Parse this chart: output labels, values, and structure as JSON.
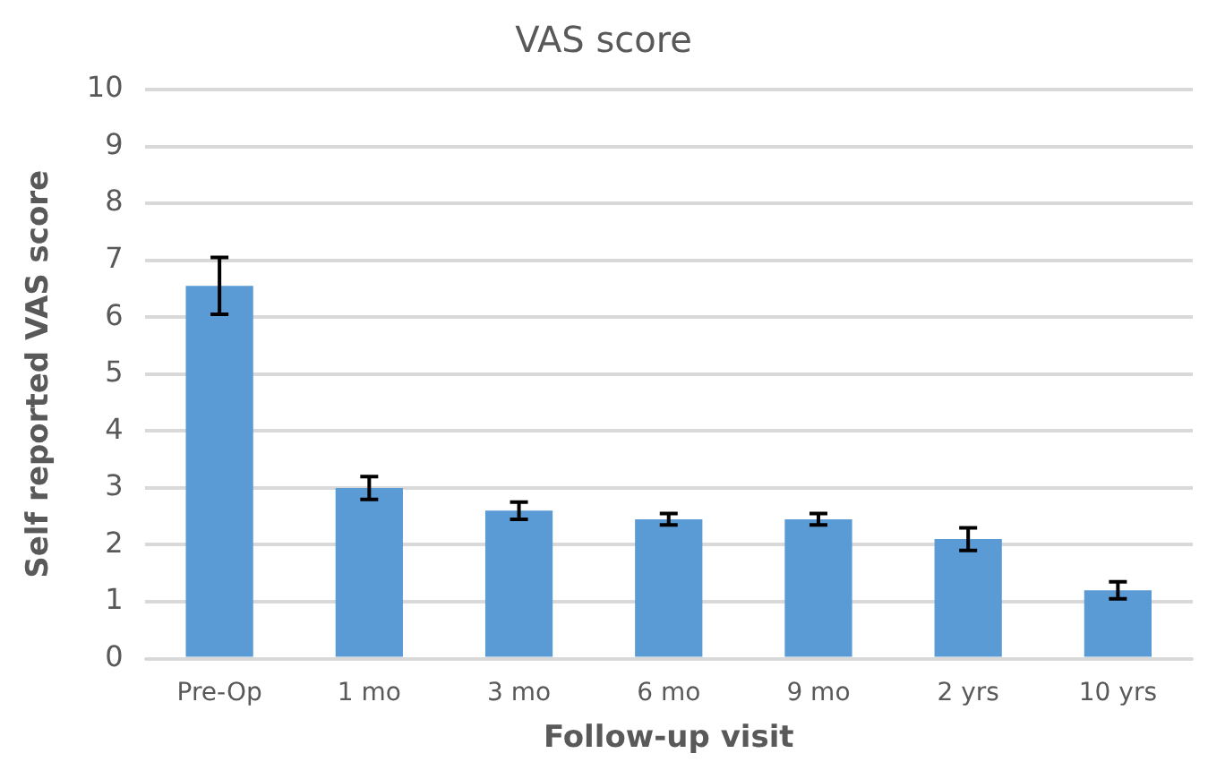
{
  "chart_data": {
    "type": "bar",
    "title": "VAS score",
    "xlabel": "Follow-up visit",
    "ylabel": "Self reported VAS score",
    "categories": [
      "Pre-Op",
      "1 mo",
      "3 mo",
      "6 mo",
      "9 mo",
      "2 yrs",
      "10 yrs"
    ],
    "values": [
      6.55,
      3.0,
      2.6,
      2.45,
      2.45,
      2.1,
      1.2
    ],
    "errors": [
      0.5,
      0.2,
      0.15,
      0.1,
      0.1,
      0.2,
      0.15
    ],
    "color": "#5b9bd5",
    "ylim": [
      0,
      10
    ],
    "yticks": [
      0,
      1,
      2,
      3,
      4,
      5,
      6,
      7,
      8,
      9,
      10
    ],
    "grid": "y",
    "legend": false
  }
}
